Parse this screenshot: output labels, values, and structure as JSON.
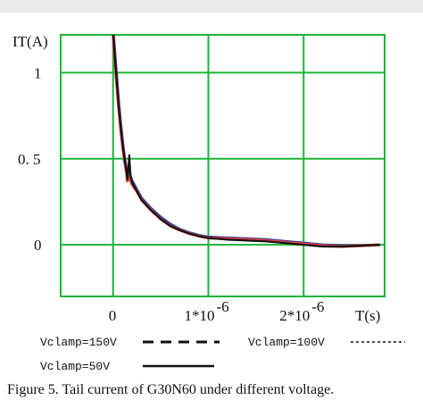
{
  "chart_data": {
    "type": "line",
    "ylabel": "IT(A)",
    "xlabel": "T(s)",
    "xlim": [
      -5.5e-07,
      2.85e-06
    ],
    "ylim": [
      -0.3,
      1.22
    ],
    "x_ticks": [
      {
        "value": 0,
        "label": "0"
      },
      {
        "value": 1e-06,
        "label": "1*10",
        "exp": "-6"
      },
      {
        "value": 2e-06,
        "label": "2*10",
        "exp": "-6"
      }
    ],
    "y_ticks": [
      {
        "value": 0,
        "label": "0"
      },
      {
        "value": 0.5,
        "label": "0. 5"
      },
      {
        "value": 1,
        "label": "1"
      }
    ],
    "grid": true,
    "grid_color": "#1db33b",
    "series": [
      {
        "name": "Vclamp=150V",
        "color": "#2a3fa0",
        "x": [
          0,
          2e-08,
          4e-08,
          6e-08,
          8e-08,
          1e-07,
          1.2e-07,
          1.4e-07,
          1.5e-07,
          1.6e-07,
          1.7e-07,
          1.8e-07,
          2e-07,
          2.5e-07,
          3e-07,
          4e-07,
          5e-07,
          6e-07,
          7e-07,
          8e-07,
          9e-07,
          1e-06,
          1.2e-06,
          1.4e-06,
          1.6e-06,
          1.8e-06,
          2e-06,
          2.2e-06,
          2.4e-06,
          2.6e-06,
          2.8e-06
        ],
        "y": [
          1.25,
          1.1,
          0.96,
          0.82,
          0.7,
          0.6,
          0.51,
          0.44,
          0.39,
          0.4,
          0.46,
          0.4,
          0.37,
          0.32,
          0.27,
          0.21,
          0.16,
          0.12,
          0.09,
          0.07,
          0.055,
          0.045,
          0.04,
          0.035,
          0.03,
          0.02,
          0.01,
          0.0,
          -0.005,
          -0.005,
          0.0
        ]
      },
      {
        "name": "Vclamp=100V",
        "color": "#e8403a",
        "x": [
          0,
          2e-08,
          4e-08,
          6e-08,
          8e-08,
          1e-07,
          1.2e-07,
          1.4e-07,
          1.5e-07,
          1.6e-07,
          1.7e-07,
          1.8e-07,
          2e-07,
          2.5e-07,
          3e-07,
          4e-07,
          5e-07,
          6e-07,
          7e-07,
          8e-07,
          9e-07,
          1e-06,
          1.2e-06,
          1.4e-06,
          1.6e-06,
          1.8e-06,
          2e-06,
          2.2e-06,
          2.4e-06,
          2.6e-06,
          2.8e-06
        ],
        "y": [
          1.22,
          1.06,
          0.92,
          0.79,
          0.67,
          0.57,
          0.49,
          0.42,
          0.37,
          0.38,
          0.43,
          0.38,
          0.35,
          0.31,
          0.26,
          0.2,
          0.15,
          0.11,
          0.085,
          0.065,
          0.05,
          0.04,
          0.035,
          0.03,
          0.025,
          0.015,
          0.005,
          -0.005,
          -0.01,
          -0.005,
          0.0
        ]
      },
      {
        "name": "Vclamp=50V",
        "color": "#111111",
        "x": [
          0,
          2e-08,
          4e-08,
          6e-08,
          8e-08,
          1e-07,
          1.2e-07,
          1.4e-07,
          1.5e-07,
          1.6e-07,
          1.7e-07,
          1.8e-07,
          2e-07,
          2.5e-07,
          3e-07,
          4e-07,
          5e-07,
          6e-07,
          7e-07,
          8e-07,
          9e-07,
          1e-06,
          1.2e-06,
          1.4e-06,
          1.6e-06,
          1.8e-06,
          2e-06,
          2.2e-06,
          2.4e-06,
          2.6e-06,
          2.8e-06
        ],
        "y": [
          1.24,
          1.08,
          0.94,
          0.8,
          0.68,
          0.58,
          0.5,
          0.43,
          0.38,
          0.44,
          0.52,
          0.41,
          0.36,
          0.31,
          0.26,
          0.2,
          0.15,
          0.11,
          0.085,
          0.065,
          0.05,
          0.04,
          0.03,
          0.025,
          0.02,
          0.01,
          0.0,
          -0.01,
          -0.01,
          -0.005,
          0.0
        ]
      }
    ],
    "legend": [
      {
        "label": "Vclamp=150V",
        "style": "dashed"
      },
      {
        "label": "Vclamp=100V",
        "style": "dotted"
      },
      {
        "label": "Vclamp=50V",
        "style": "solid"
      }
    ],
    "legend_position": "bottom",
    "caption": "Figure 5.  Tail current of G30N60 under different voltage."
  }
}
